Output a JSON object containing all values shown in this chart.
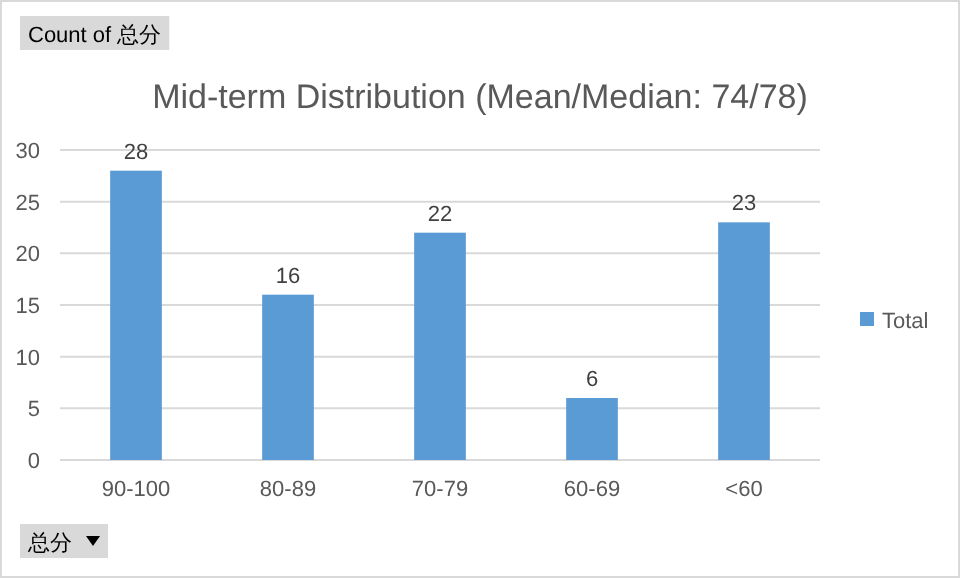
{
  "chart_data": {
    "type": "bar",
    "title": "Mid-term Distribution (Mean/Median: 74/78)",
    "categories": [
      "90-100",
      "80-89",
      "70-79",
      "60-69",
      "<60"
    ],
    "series": [
      {
        "name": "Total",
        "color": "#5b9bd5",
        "values": [
          28,
          16,
          22,
          6,
          23
        ]
      }
    ],
    "ylim": [
      0,
      30
    ],
    "yticks": [
      0,
      5,
      10,
      15,
      20,
      25,
      30
    ],
    "grid": "y",
    "legend": "right",
    "data_labels": true,
    "annotations": [
      "Count of 总分",
      "总分"
    ]
  }
}
